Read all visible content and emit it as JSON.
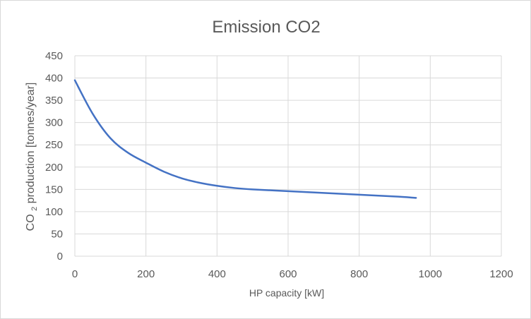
{
  "chart_data": {
    "type": "line",
    "title": "Emission CO2",
    "xlabel": "HP capacity [kW]",
    "ylabel": {
      "prefix": "CO",
      "subscript": "2",
      "suffix": " production [tonnes/year]"
    },
    "xlim": [
      0,
      1200
    ],
    "ylim": [
      0,
      450
    ],
    "x_ticks": [
      0,
      200,
      400,
      600,
      800,
      1000,
      1200
    ],
    "y_ticks": [
      0,
      50,
      100,
      150,
      200,
      250,
      300,
      350,
      400,
      450
    ],
    "grid": true,
    "series": [
      {
        "name": "Emission CO2",
        "color": "#4472C4",
        "x": [
          0,
          50,
          100,
          150,
          200,
          250,
          300,
          350,
          400,
          450,
          500,
          600,
          700,
          800,
          900,
          960
        ],
        "y": [
          395,
          320,
          265,
          232,
          210,
          190,
          175,
          165,
          158,
          153,
          150,
          146,
          142,
          138,
          134,
          131
        ]
      }
    ]
  }
}
